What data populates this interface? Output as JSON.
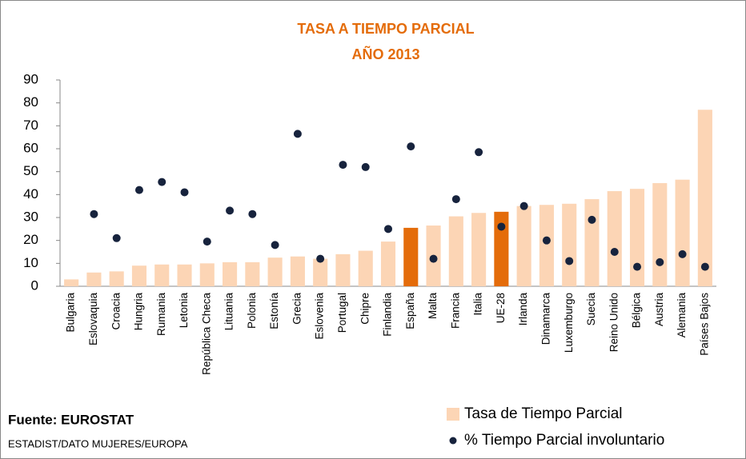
{
  "chart_data": {
    "type": "bar",
    "title": [
      "TASA A TIEMPO PARCIAL",
      "AÑO 2013"
    ],
    "source": "Fuente: EUROSTAT",
    "note": "ESTADIST/DATO MUJERES/EUROPA",
    "categories": [
      "Bulgaria",
      "Eslovaquia",
      "Croacia",
      "Hungria",
      "Rumania",
      "Letonia",
      "República Checa",
      "Lituania",
      "Polonia",
      "Estonía",
      "Grecia",
      "Eslovenia",
      "Portugal",
      "Chipre",
      "Finlandia",
      "España",
      "Malta",
      "Francia",
      "Italia",
      "UE-28",
      "Irlanda",
      "Dinamarca",
      "Luxemburgo",
      "Suecia",
      "Reino Unido",
      "Bélgica",
      "Austria",
      "Alemania",
      "Países Bajos"
    ],
    "series": [
      {
        "name": "Tasa de  Tiempo Parcial",
        "type": "bar",
        "color": "#fcd5b5",
        "colors": [
          "#fcd5b5",
          "#fcd5b5",
          "#fcd5b5",
          "#fcd5b5",
          "#fcd5b5",
          "#fcd5b5",
          "#fcd5b5",
          "#fcd5b5",
          "#fcd5b5",
          "#fcd5b5",
          "#fcd5b5",
          "#fcd5b5",
          "#fcd5b5",
          "#fcd5b5",
          "#fcd5b5",
          "#e46c0a",
          "#fcd5b5",
          "#fcd5b5",
          "#fcd5b5",
          "#e46c0a",
          "#fcd5b5",
          "#fcd5b5",
          "#fcd5b5",
          "#fcd5b5",
          "#fcd5b5",
          "#fcd5b5",
          "#fcd5b5",
          "#fcd5b5",
          "#fcd5b5"
        ],
        "values": [
          3,
          6,
          6.5,
          9,
          9.5,
          9.5,
          10,
          10.5,
          10.5,
          12.5,
          13,
          12,
          14,
          15.5,
          19.5,
          25.5,
          26.5,
          30.5,
          32,
          32.5,
          35,
          35.5,
          36,
          38,
          41.5,
          42.5,
          45,
          46.5,
          77
        ]
      },
      {
        "name": "% Tiempo Parcial involuntario",
        "type": "scatter",
        "color": "#17233d",
        "values": [
          null,
          31.5,
          21,
          42,
          45.5,
          41,
          19.5,
          33,
          31.5,
          18,
          66.5,
          12,
          53,
          52,
          25,
          61,
          12,
          38,
          58.5,
          26,
          35,
          20,
          11,
          29,
          15,
          8.5,
          10.5,
          14,
          8.5
        ]
      }
    ],
    "ylim": [
      0,
      90
    ],
    "yticks": [
      0,
      10,
      20,
      30,
      40,
      50,
      60,
      70,
      80,
      90
    ]
  }
}
